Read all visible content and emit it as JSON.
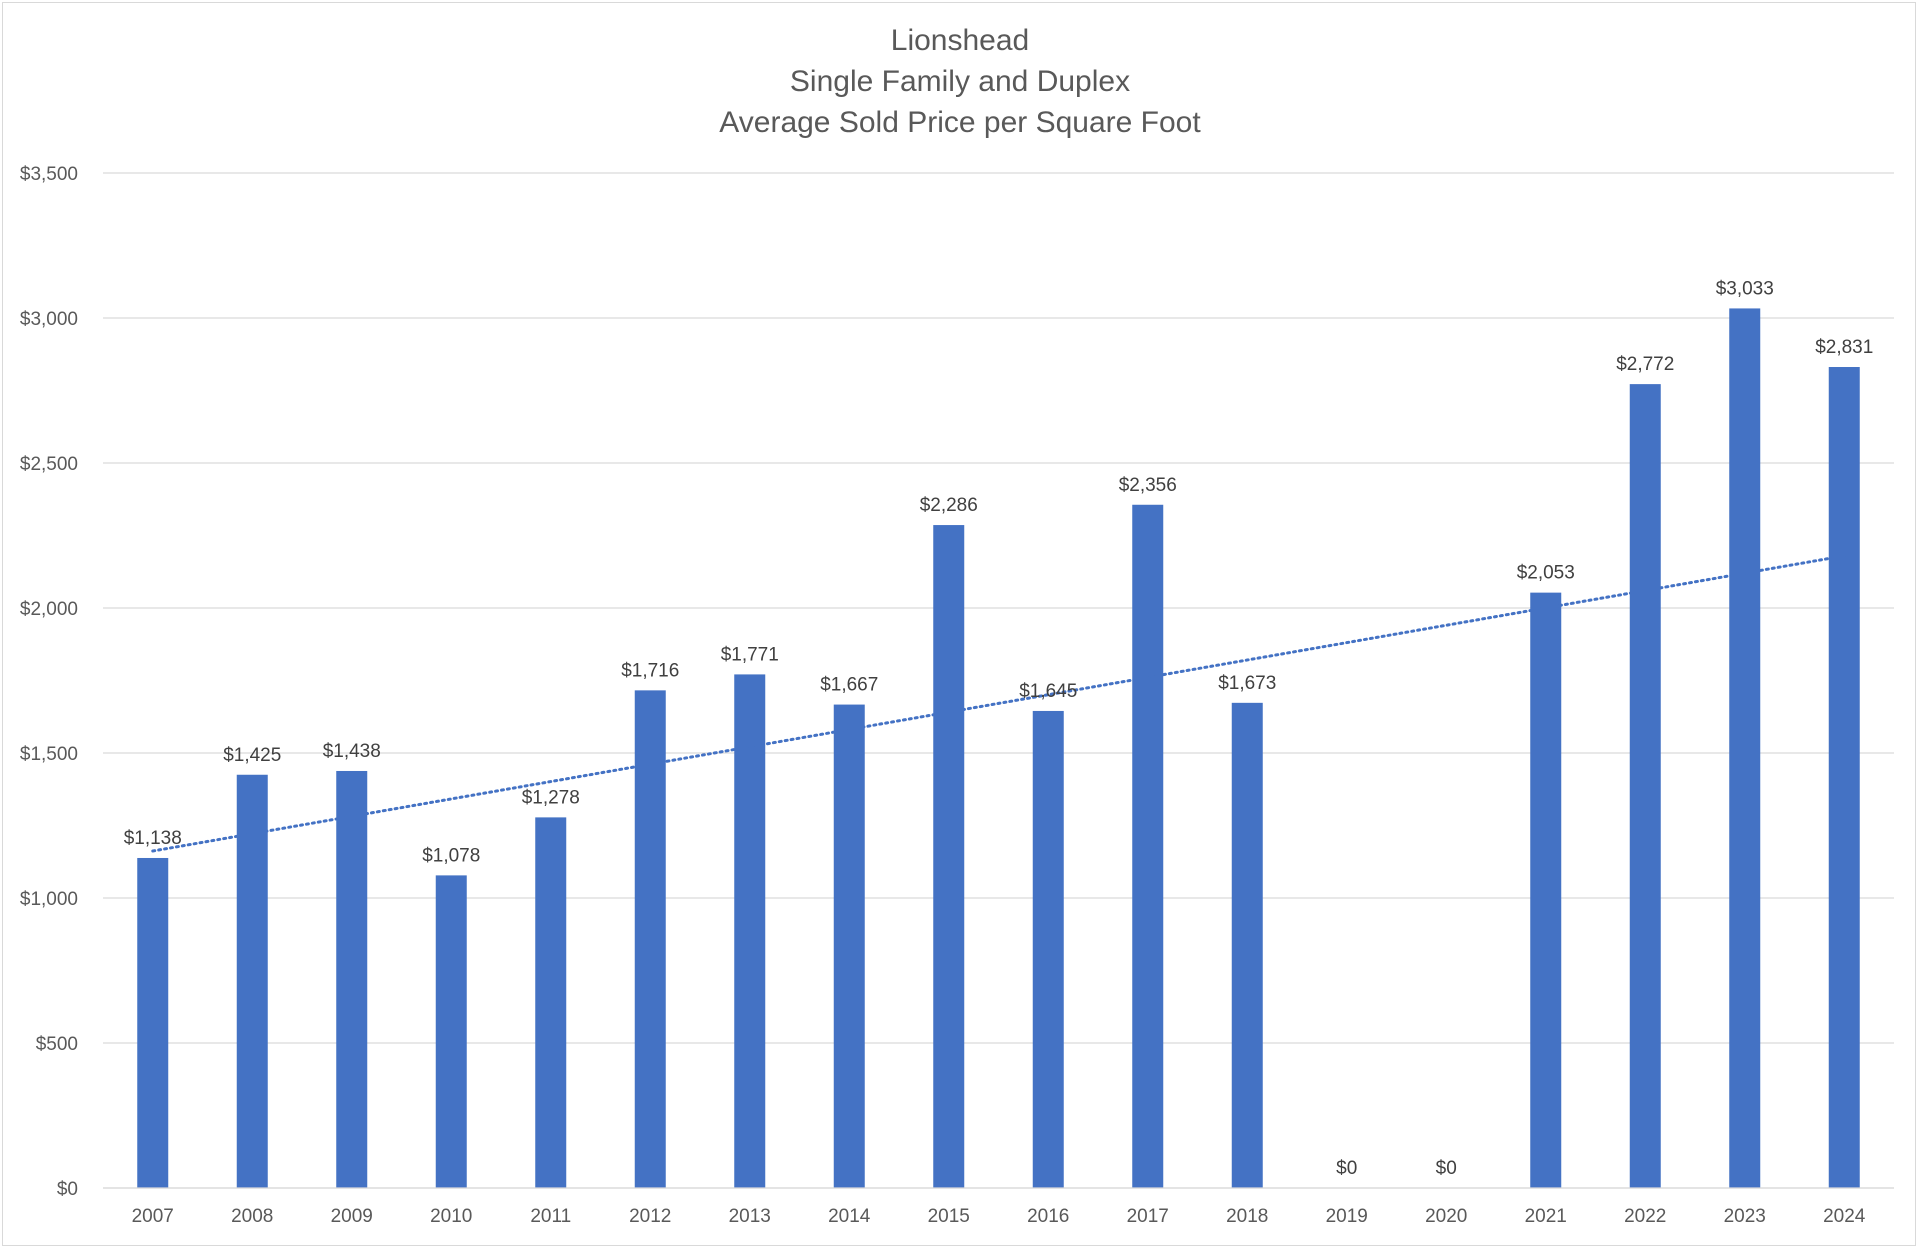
{
  "chart_data": {
    "type": "bar",
    "title_lines": [
      "Lionshead",
      "Single Family and Duplex",
      "Average Sold Price per Square Foot"
    ],
    "categories": [
      "2007",
      "2008",
      "2009",
      "2010",
      "2011",
      "2012",
      "2013",
      "2014",
      "2015",
      "2016",
      "2017",
      "2018",
      "2019",
      "2020",
      "2021",
      "2022",
      "2023",
      "2024"
    ],
    "values": [
      1138,
      1425,
      1438,
      1078,
      1278,
      1716,
      1771,
      1667,
      2286,
      1645,
      2356,
      1673,
      0,
      0,
      2053,
      2772,
      3033,
      2831
    ],
    "data_labels": [
      "$1,138",
      "$1,425",
      "$1,438",
      "$1,078",
      "$1,278",
      "$1,716",
      "$1,771",
      "$1,667",
      "$2,286",
      "$1,645",
      "$2,356",
      "$1,673",
      "$0",
      "$0",
      "$2,053",
      "$2,772",
      "$3,033",
      "$2,831"
    ],
    "ylim": [
      0,
      3500
    ],
    "yticks": [
      0,
      500,
      1000,
      1500,
      2000,
      2500,
      3000,
      3500
    ],
    "ytick_labels": [
      "$0",
      "$500",
      "$1,000",
      "$1,500",
      "$2,000",
      "$2,500",
      "$3,000",
      "$3,500"
    ],
    "trendline": {
      "type": "linear",
      "style": "dotted",
      "start_value": 1162,
      "end_value": 2180
    },
    "grid": true,
    "legend": "none",
    "bar_color": "#4472C4",
    "grid_color": "#d9d9d9",
    "trend_color": "#4472C4"
  }
}
